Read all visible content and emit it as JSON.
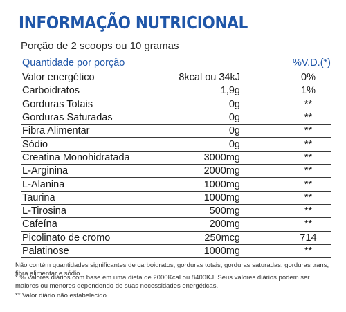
{
  "title": "INFORMAÇÃO NUTRICIONAL",
  "serving": "Porção de 2 scoops ou 10 gramas",
  "header": {
    "name": "Quantidade por porção",
    "vd": "%V.D.(*)"
  },
  "rows": [
    {
      "name": "Valor energético",
      "qty": "8kcal ou 34kJ",
      "vd": "0%"
    },
    {
      "name": "Carboidratos",
      "qty": "1,9g",
      "vd": "1%"
    },
    {
      "name": "Gorduras Totais",
      "qty": "0g",
      "vd": "**"
    },
    {
      "name": "Gorduras Saturadas",
      "qty": "0g",
      "vd": "**"
    },
    {
      "name": "Fibra Alimentar",
      "qty": "0g",
      "vd": "**"
    },
    {
      "name": "Sódio",
      "qty": "0g",
      "vd": "**"
    },
    {
      "name": "Creatina Monohidratada",
      "qty": "3000mg",
      "vd": "**"
    },
    {
      "name": "L-Arginina",
      "qty": "2000mg",
      "vd": "**"
    },
    {
      "name": "L-Alanina",
      "qty": "1000mg",
      "vd": "**"
    },
    {
      "name": "Taurina",
      "qty": "1000mg",
      "vd": "**"
    },
    {
      "name": "L-Tirosina",
      "qty": "500mg",
      "vd": "**"
    },
    {
      "name": "Cafeína",
      "qty": "200mg",
      "vd": "**"
    },
    {
      "name": "Picolinato de cromo",
      "qty": "250mcg",
      "vd": "714"
    },
    {
      "name": "Palatinose",
      "qty": "1000mg",
      "vd": "**"
    }
  ],
  "notes": {
    "insignificant": "Não contém quantidades significantes de carboidratos, gorduras totais, gorduras saturadas, gorduras trans, fibra alimentar e sódio.",
    "daily_values": "* % Valores diários com base em uma dieta de 2000Kcal ou 8400KJ. Seus valores diários podem ser maiores ou menores dependendo de suas necessidades energéticas.",
    "not_established": "** Valor diário não estabelecido."
  }
}
